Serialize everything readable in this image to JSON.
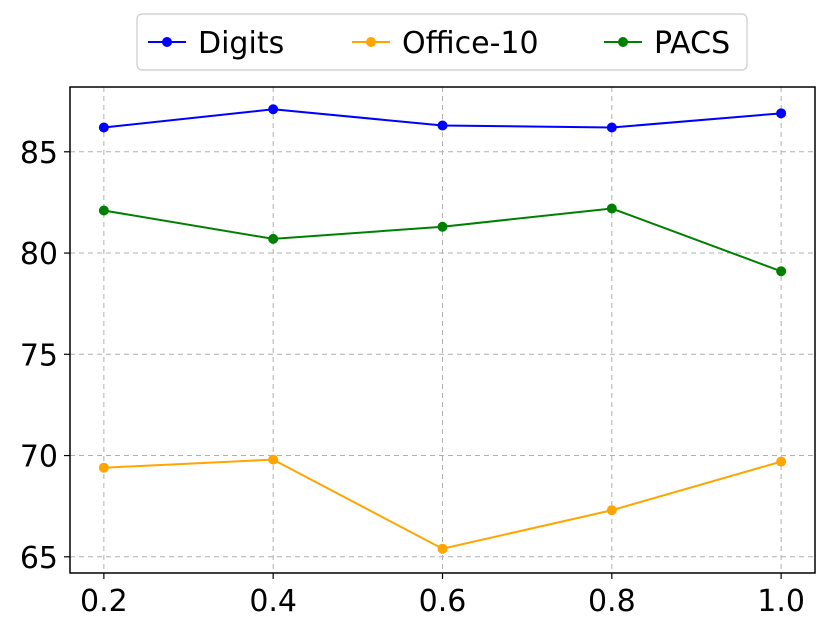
{
  "chart_data": {
    "type": "line",
    "x": [
      0.2,
      0.4,
      0.6,
      0.8,
      1.0
    ],
    "x_tick_labels": [
      "0.2",
      "0.4",
      "0.6",
      "0.8",
      "1.0"
    ],
    "y_ticks": [
      65,
      70,
      75,
      80,
      85
    ],
    "y_tick_labels": [
      "65",
      "70",
      "75",
      "80",
      "85"
    ],
    "xlim": [
      0.16,
      1.04
    ],
    "ylim": [
      64.2,
      88.2
    ],
    "grid": true,
    "legend_position": "top-center",
    "series": [
      {
        "name": "Digits",
        "color": "#0000ff",
        "values": [
          86.2,
          87.1,
          86.3,
          86.2,
          86.9
        ]
      },
      {
        "name": "Office-10",
        "color": "#ffa500",
        "values": [
          69.4,
          69.8,
          65.4,
          67.3,
          69.7
        ]
      },
      {
        "name": "PACS",
        "color": "#008000",
        "values": [
          82.1,
          80.7,
          81.3,
          82.2,
          79.1
        ]
      }
    ]
  }
}
